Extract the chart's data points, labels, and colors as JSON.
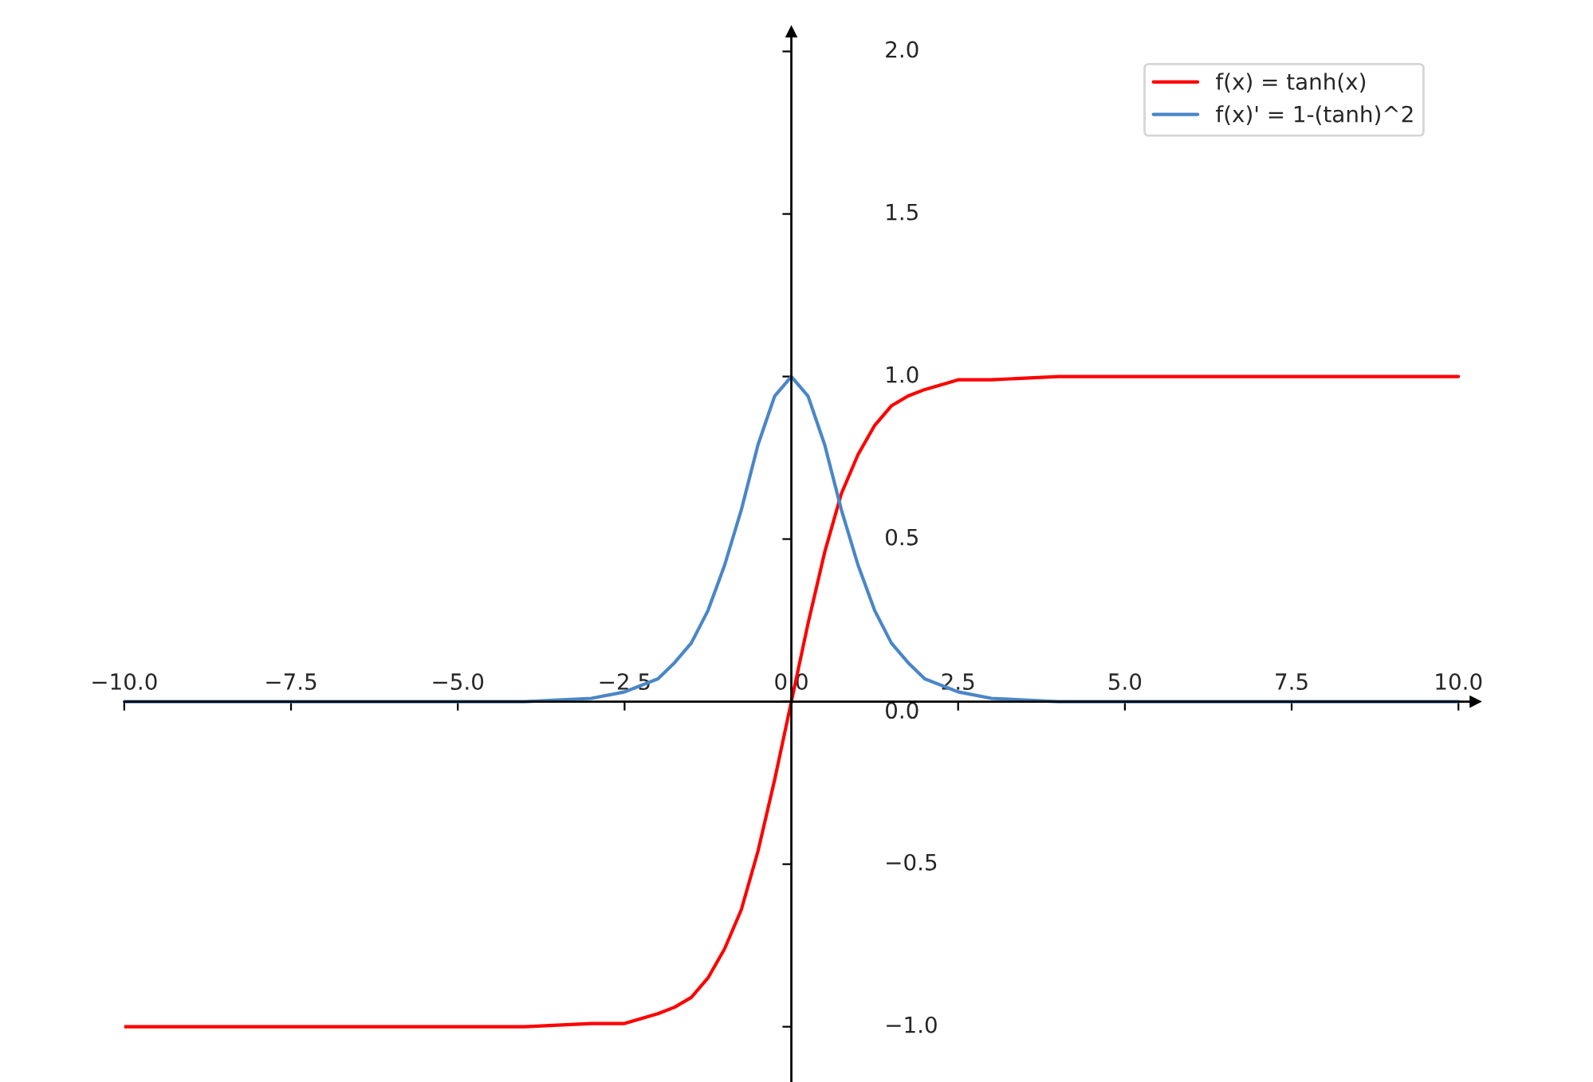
{
  "chart_data": {
    "type": "line",
    "x": [
      -10,
      -5,
      -4,
      -3,
      -2.5,
      -2,
      -1.75,
      -1.5,
      -1.25,
      -1,
      -0.75,
      -0.5,
      -0.25,
      0,
      0.25,
      0.5,
      0.75,
      1,
      1.25,
      1.5,
      1.75,
      2,
      2.5,
      3,
      4,
      5,
      10
    ],
    "series": [
      {
        "name": "f(x) = tanh(x)",
        "color": "#ff0000",
        "values": [
          -1,
          -1,
          -1,
          -0.99,
          -0.99,
          -0.96,
          -0.94,
          -0.91,
          -0.85,
          -0.76,
          -0.64,
          -0.46,
          -0.24,
          0,
          0.24,
          0.46,
          0.64,
          0.76,
          0.85,
          0.91,
          0.94,
          0.96,
          0.99,
          0.99,
          1,
          1,
          1
        ]
      },
      {
        "name": "f(x)' = 1-(tanh)^2",
        "color": "#4a86c8",
        "values": [
          0,
          0,
          0,
          0.01,
          0.03,
          0.07,
          0.12,
          0.18,
          0.28,
          0.42,
          0.59,
          0.79,
          0.94,
          1,
          0.94,
          0.79,
          0.59,
          0.42,
          0.28,
          0.18,
          0.12,
          0.07,
          0.03,
          0.01,
          0,
          0,
          0
        ]
      }
    ],
    "xlim": [
      -10,
      10.25
    ],
    "ylim": [
      -1.17,
      2.06
    ],
    "xticks": [
      {
        "value": -10,
        "label": "−10.0"
      },
      {
        "value": -7.5,
        "label": "−7.5"
      },
      {
        "value": -5,
        "label": "−5.0"
      },
      {
        "value": -2.5,
        "label": "−2.5"
      },
      {
        "value": 0,
        "label": "0.0"
      },
      {
        "value": 2.5,
        "label": "2.5"
      },
      {
        "value": 5,
        "label": "5.0"
      },
      {
        "value": 7.5,
        "label": "7.5"
      },
      {
        "value": 10,
        "label": "10.0"
      }
    ],
    "yticks": [
      {
        "value": -1,
        "label": "−1.0"
      },
      {
        "value": -0.5,
        "label": "−0.5"
      },
      {
        "value": 0,
        "label": "0.0"
      },
      {
        "value": 0.5,
        "label": "0.5"
      },
      {
        "value": 1,
        "label": "1.0"
      },
      {
        "value": 1.5,
        "label": "1.5"
      },
      {
        "value": 2,
        "label": "2.0"
      }
    ],
    "legend": "top right",
    "marker": "none",
    "line_style": "solid"
  }
}
